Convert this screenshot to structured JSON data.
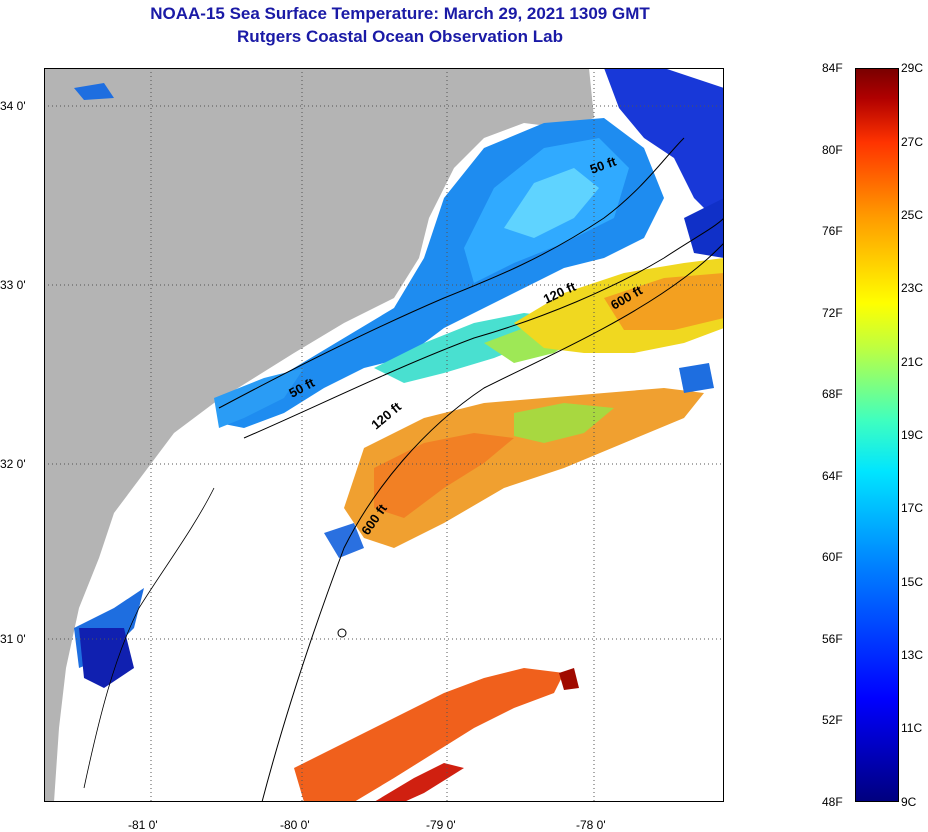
{
  "title": {
    "line1": "NOAA-15 Sea Surface Temperature:  March 29, 2021 1309 GMT",
    "line2": "Rutgers Coastal Ocean Observation Lab"
  },
  "map": {
    "lat_labels": [
      "34 0'",
      "33 0'",
      "32 0'",
      "31 0'"
    ],
    "lon_labels": [
      "-81 0'",
      "-80 0'",
      "-79 0'",
      "-78 0'"
    ],
    "contour_labels": [
      "50 ft",
      "120 ft",
      "600 ft",
      "50 ft",
      "120 ft",
      "600 ft"
    ],
    "colors": {
      "land": "#b4b4b4",
      "ocean_missing": "#ffffff",
      "grid": "#555555"
    }
  },
  "colorbar": {
    "fahrenheit": [
      "84F",
      "80F",
      "76F",
      "72F",
      "68F",
      "64F",
      "60F",
      "56F",
      "52F",
      "48F"
    ],
    "celsius": [
      "29C",
      "27C",
      "25C",
      "23C",
      "21C",
      "19C",
      "17C",
      "15C",
      "13C",
      "11C",
      "9C"
    ],
    "range_f": [
      48,
      84
    ],
    "range_c": [
      9,
      29
    ]
  }
}
